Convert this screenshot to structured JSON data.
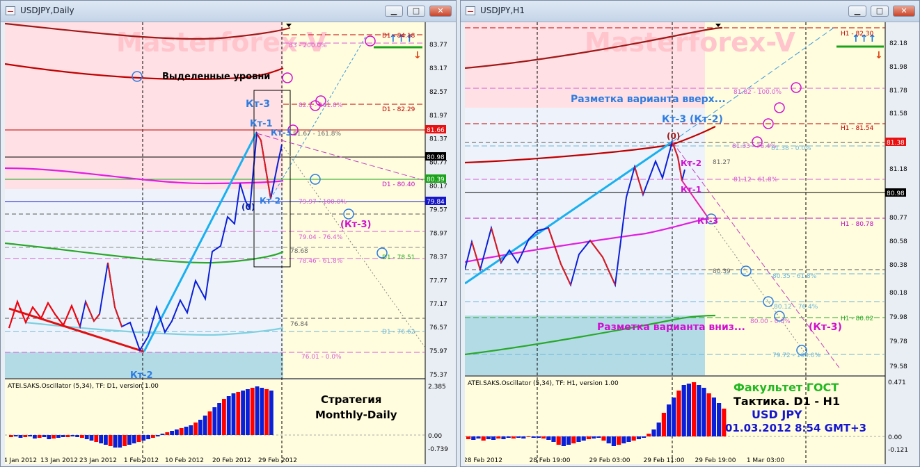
{
  "left_window": {
    "title": "USDJPY,Daily",
    "watermark": "Masterforex-V",
    "annotations": {
      "highlighted_levels": "Выделенные уровни",
      "kt3_top": "Кт-3",
      "kt1": "Кт-1",
      "kt3_mid": "Кт-3",
      "point0": "(0)",
      "kt2": "Кт-2",
      "kt3_down": "(Кт-3)",
      "kt2_bottom": "Кт-2",
      "strategy_line1": "Стратегия",
      "strategy_line2": "Monthly-Daily"
    },
    "levels": {
      "d1_top": "D1 - 84.18",
      "fib_200": "83 - 200.0%",
      "fib_1618_top": "82.1 - 161.8%",
      "d1_8229": "D1 - 82.29",
      "fib_1618": "81.67 - 161.8%",
      "d1_8040": "D1 - 80.40",
      "fib_100": "79.97 - 100.0%",
      "fib_764": "79.04 - 76.4%",
      "lvl_7868": "78.68",
      "fib_618": "78.46 - 61.8%",
      "d1_7851": "D1 - 78.51",
      "lvl_7684": "76.84",
      "d1_7662": "D1 - 76.62",
      "fib_0": "76.01 - 0.0%"
    },
    "price_axis": [
      "83.77",
      "83.17",
      "82.57",
      "81.97",
      "81.37",
      "80.77",
      "80.17",
      "79.57",
      "78.97",
      "78.37",
      "77.77",
      "77.17",
      "76.57",
      "75.97",
      "75.37"
    ],
    "tags": {
      "t1": "81.66",
      "t2": "80.98",
      "t3": "80.39",
      "t4": "79.84"
    },
    "time_axis": [
      "4 Jan 2012",
      "13 Jan 2012",
      "23 Jan 2012",
      "1 Feb 2012",
      "10 Feb 2012",
      "20 Feb 2012",
      "29 Feb 2012"
    ],
    "oscillator": {
      "label": "ATEI.SAKS.Oscillator (5,34), TF: D1,  version 1.00",
      "max": "2.385",
      "zero": "0.00",
      "min": "-0.739"
    }
  },
  "right_window": {
    "title": "USDJPY,H1",
    "watermark": "Masterforex-V",
    "annotations": {
      "up_variant": "Разметка варианта вверх...",
      "kt3_kt2": "Кт-3  (Кт-2)",
      "point0": "(0)",
      "kt2": "Кт-2",
      "kt1": "Кт-1",
      "kt3_mid": "Кт-3",
      "down_variant": "Разметка варианта вниз...",
      "kt3_down": "(Кт-3)",
      "faculty": "Факультет ГОСТ",
      "tactic": "Тактика. D1 - H1",
      "pair": "USD JPY",
      "datetime": "01.03.2012 8:54 GMT+3"
    },
    "levels": {
      "h1_8230": "H1 - 82.30",
      "fib_100": "81.82 - 100.0%",
      "h1_8154": "H1 - 81.54",
      "fib_764": "81.33 - 76.4%",
      "fib_00": "81.38 - 0.0%",
      "lvl_8127": "81.27",
      "fib_618": "81.12 - 61.8%",
      "h1_8078": "H1 - 80.78",
      "lvl_8039": "80.39",
      "fib_618d": "80.35 - 61.8%",
      "fib_764d": "80.12 - 76.4%",
      "fib_100d": "80.00 - 0.0%",
      "h1_8002": "H1 - 80.02",
      "fib_1000d": "79.72 - 100.0%"
    },
    "price_axis": [
      "82.18",
      "81.98",
      "81.78",
      "81.58",
      "81.18",
      "80.77",
      "80.58",
      "80.38",
      "80.18",
      "79.98",
      "79.78",
      "79.58"
    ],
    "tags": {
      "t1": "81.38",
      "t2": "80.98"
    },
    "time_axis": [
      "28 Feb 2012",
      "28 Feb 19:00",
      "29 Feb 03:00",
      "29 Feb 11:00",
      "29 Feb 19:00",
      "1 Mar 03:00"
    ],
    "oscillator": {
      "label": "ATEI.SAKS.Oscillator (5,34), TF: H1,  version 1.00",
      "max": "0.471",
      "zero": "0.00",
      "min": "-0.121"
    }
  },
  "colors": {
    "pink_zone": "#ffe0e4",
    "blue_zone": "#eef3fb",
    "yellow_zone": "#fffddd",
    "teal_zone": "#b3dbe6",
    "bull": "#0b1fd8",
    "bear": "#ff0000"
  }
}
